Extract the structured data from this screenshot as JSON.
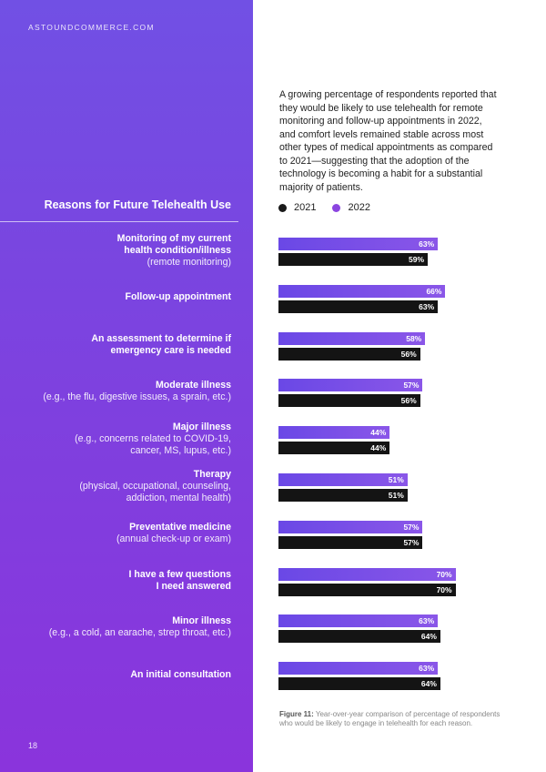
{
  "site": "ASTOUNDCOMMERCE.COM",
  "intro": "A growing percentage of respondents reported that they would be likely to use telehealth for remote monitoring and follow-up appointments in 2022, and comfort levels remained stable across most other types of medical appointments as compared to 2021—suggesting that the adoption of the technology is becoming a habit for a substantial majority of patients.",
  "page_number": "18",
  "caption": {
    "label": "Figure 11:",
    "text": "Year-over-year comparison of percentage of respondents who would be likely to engage in telehealth for each reason."
  },
  "colors": {
    "panel": "#7a45e0",
    "bar_2022": "#7c52e6",
    "bar_2021": "#141414"
  },
  "chart_data": {
    "type": "bar",
    "orientation": "horizontal",
    "title": "Reasons for Future Telehealth Use",
    "unit": "%",
    "xlim": [
      0,
      100
    ],
    "legend": [
      "2021",
      "2022"
    ],
    "categories": [
      {
        "bold": [
          "Monitoring of my current",
          "health condition/illness"
        ],
        "light": [
          "(remote monitoring)"
        ]
      },
      {
        "bold": [
          "Follow-up appointment"
        ],
        "light": []
      },
      {
        "bold": [
          "An assessment to determine if",
          "emergency care is needed"
        ],
        "light": []
      },
      {
        "bold": [
          "Moderate illness"
        ],
        "light": [
          "(e.g., the flu, digestive issues, a sprain, etc.)"
        ]
      },
      {
        "bold": [
          "Major illness"
        ],
        "light": [
          "(e.g., concerns related to COVID-19,",
          "cancer, MS, lupus, etc.)"
        ]
      },
      {
        "bold": [
          "Therapy"
        ],
        "light": [
          "(physical, occupational, counseling,",
          "addiction, mental health)"
        ]
      },
      {
        "bold": [
          "Preventative medicine"
        ],
        "light": [
          "(annual check-up or exam)"
        ]
      },
      {
        "bold": [
          "I have a few questions",
          "I need answered"
        ],
        "light": []
      },
      {
        "bold": [
          "Minor illness"
        ],
        "light": [
          "(e.g., a cold, an earache, strep throat, etc.)"
        ]
      },
      {
        "bold": [
          "An initial consultation"
        ],
        "light": []
      }
    ],
    "series": [
      {
        "name": "2022",
        "values": [
          63,
          66,
          58,
          57,
          44,
          51,
          57,
          70,
          63,
          63
        ]
      },
      {
        "name": "2021",
        "values": [
          59,
          63,
          56,
          56,
          44,
          51,
          57,
          70,
          64,
          64
        ]
      }
    ]
  }
}
